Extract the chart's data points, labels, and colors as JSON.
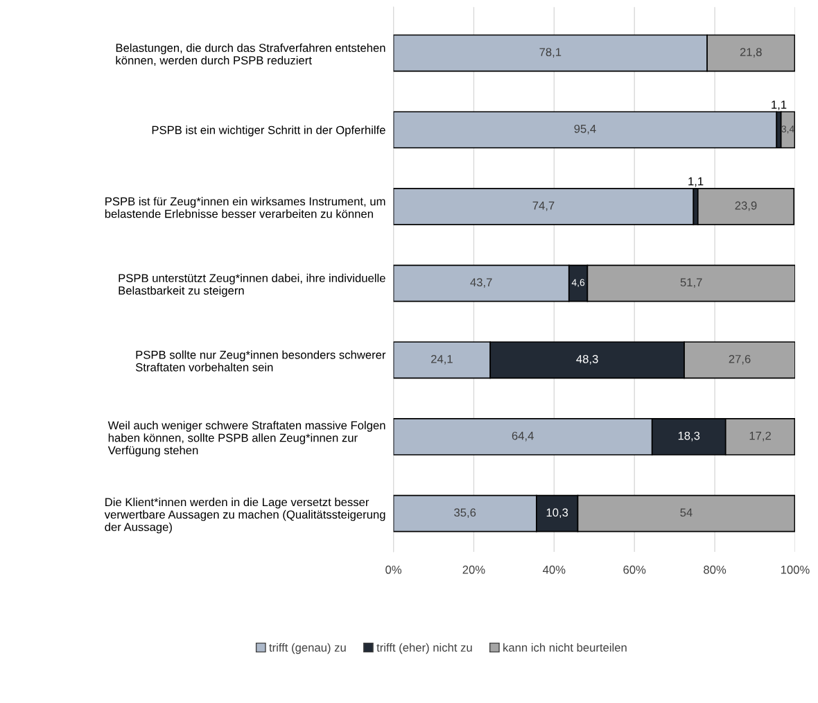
{
  "chart_data": {
    "type": "bar",
    "orientation": "horizontal",
    "stacked": true,
    "categories": [
      "Belastungen, die durch das Strafverfahren entstehen\nkönnen, werden durch PSPB reduziert",
      "PSPB ist ein wichtiger Schritt in der Opferhilfe",
      "PSPB ist für Zeug*innen ein wirksames Instrument, um\nbelastende Erlebnisse besser verarbeiten zu können",
      "PSPB unterstützt Zeug*innen dabei, ihre individuelle\nBelastbarkeit zu steigern",
      "PSPB sollte nur Zeug*innen besonders schwerer\nStraftaten vorbehalten sein",
      "Weil auch weniger schwere Straftaten massive Folgen\nhaben können, sollte PSPB allen Zeug*innen zur\nVerfügung stehen",
      "Die Klient*innen werden in die Lage versetzt besser\nverwertbare Aussagen zu machen (Qualitätssteigerung\nder Aussage)"
    ],
    "series": [
      {
        "name": "trifft (genau) zu",
        "color": "#adb9ca",
        "values": [
          78.1,
          95.4,
          74.7,
          43.7,
          24.1,
          64.4,
          35.6
        ],
        "value_labels": [
          "78,1",
          "95,4",
          "74,7",
          "43,7",
          "24,1",
          "64,4",
          "35,6"
        ]
      },
      {
        "name": "trifft (eher) nicht zu",
        "color": "#222a35",
        "values": [
          null,
          1.1,
          1.1,
          4.6,
          48.3,
          18.3,
          10.3
        ],
        "value_labels": [
          null,
          "1,1",
          "1,1",
          "4,6",
          "48,3",
          "18,3",
          "10,3"
        ]
      },
      {
        "name": "kann ich nicht beurteilen",
        "color": "#a5a5a5",
        "values": [
          21.8,
          3.4,
          23.9,
          51.7,
          27.6,
          17.2,
          54
        ],
        "value_labels": [
          "21,8",
          "3,4",
          "23,9",
          "51,7",
          "27,6",
          "17,2",
          "54"
        ]
      }
    ],
    "xlim": [
      0,
      100
    ],
    "xticks": [
      {
        "value": 0,
        "label": "0%"
      },
      {
        "value": 20,
        "label": "20%"
      },
      {
        "value": 40,
        "label": "40%"
      },
      {
        "value": 60,
        "label": "60%"
      },
      {
        "value": 80,
        "label": "80%"
      },
      {
        "value": 100,
        "label": "100%"
      }
    ],
    "grid": "x",
    "legend": "bottom"
  }
}
